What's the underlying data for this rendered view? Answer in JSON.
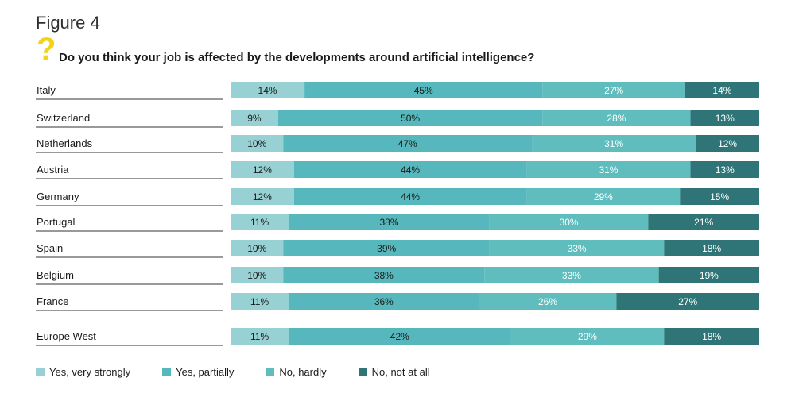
{
  "figure_label": "Figure 4",
  "question_icon": "question-mark-icon",
  "question": "Do you think your job is affected by the developments around artificial intelligence?",
  "colors": {
    "yes_very_strongly": "#98d1d3",
    "yes_partially": "#56b8bc",
    "no_hardly": "#5fbdbe",
    "no_not_at_all": "#2f7476"
  },
  "chart_data": {
    "type": "bar",
    "orientation": "horizontal",
    "stacked": true,
    "title": "Do you think your job is affected by the developments around artificial intelligence?",
    "categories": [
      "Italy",
      "Switzerland",
      "Netherlands",
      "Austria",
      "Germany",
      "Portugal",
      "Spain",
      "Belgium",
      "France",
      "Europe West"
    ],
    "series": [
      {
        "name": "Yes, very strongly",
        "values": [
          14,
          9,
          10,
          12,
          12,
          11,
          10,
          10,
          11,
          11
        ]
      },
      {
        "name": "Yes, partially",
        "values": [
          45,
          50,
          47,
          44,
          44,
          38,
          39,
          38,
          36,
          42
        ]
      },
      {
        "name": "No, hardly",
        "values": [
          27,
          28,
          31,
          31,
          29,
          30,
          33,
          33,
          26,
          29
        ]
      },
      {
        "name": "No, not at all",
        "values": [
          14,
          13,
          12,
          13,
          15,
          21,
          18,
          19,
          27,
          18
        ]
      }
    ],
    "value_suffix": "%",
    "legend_position": "bottom",
    "grid": false
  }
}
